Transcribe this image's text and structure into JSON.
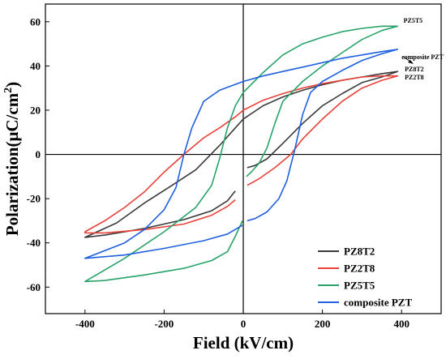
{
  "chart_data": {
    "type": "line",
    "xlabel": "Field (kV/cm)",
    "ylabel_main": "Polarization(μC/cm",
    "ylabel_sup": "2",
    "ylabel_close": ")",
    "xlim": [
      -500,
      500
    ],
    "ylim": [
      -72,
      68
    ],
    "x_ticks": [
      -400,
      -200,
      0,
      200,
      400
    ],
    "x_tick_labels": [
      "-400",
      "-200",
      "0",
      "200",
      "400"
    ],
    "y_ticks": [
      -60,
      -40,
      -20,
      0,
      20,
      40,
      60
    ],
    "y_tick_labels": [
      "-60",
      "-40",
      "-20",
      "0",
      "20",
      "40",
      "60"
    ],
    "grid": false,
    "zero_lines": true,
    "legend_position": "bottom-right",
    "series": [
      {
        "name": "PZ8T2",
        "color": "#3a3a3a",
        "upper": [
          [
            -20,
            -16.5
          ],
          [
            -40,
            -21
          ],
          [
            -80,
            -25.5
          ],
          [
            -150,
            -29.5
          ],
          [
            -250,
            -33.5
          ],
          [
            -350,
            -36.5
          ],
          [
            -400,
            -37.5
          ]
        ],
        "lower": [
          [
            -400,
            -37.5
          ],
          [
            -320,
            -31
          ],
          [
            -250,
            -22
          ],
          [
            -180,
            -14
          ],
          [
            -120,
            -7
          ],
          [
            -60,
            4
          ],
          [
            -20,
            12
          ],
          [
            0,
            16
          ],
          [
            50,
            22
          ],
          [
            100,
            26
          ],
          [
            150,
            29
          ],
          [
            200,
            31.5
          ],
          [
            250,
            33.5
          ],
          [
            300,
            35
          ],
          [
            350,
            36.5
          ],
          [
            390,
            37.5
          ]
        ],
        "descend": [
          [
            390,
            37.5
          ],
          [
            350,
            35
          ],
          [
            300,
            32.5
          ],
          [
            250,
            27.5
          ],
          [
            200,
            22
          ],
          [
            150,
            14
          ],
          [
            100,
            5
          ],
          [
            60,
            -2
          ],
          [
            30,
            -5
          ],
          [
            10,
            -6
          ]
        ]
      },
      {
        "name": "PZ2T8",
        "color": "#e8423a",
        "upper": [
          [
            -20,
            -20.5
          ],
          [
            -40,
            -23.5
          ],
          [
            -80,
            -27.5
          ],
          [
            -150,
            -31.5
          ],
          [
            -250,
            -34
          ],
          [
            -350,
            -35.5
          ],
          [
            -400,
            -35.5
          ]
        ],
        "lower": [
          [
            -400,
            -35
          ],
          [
            -350,
            -30
          ],
          [
            -300,
            -24
          ],
          [
            -250,
            -17
          ],
          [
            -200,
            -8
          ],
          [
            -150,
            0
          ],
          [
            -100,
            7.5
          ],
          [
            -60,
            12
          ],
          [
            -20,
            17
          ],
          [
            0,
            20
          ],
          [
            50,
            24.5
          ],
          [
            100,
            27.5
          ],
          [
            150,
            30
          ],
          [
            200,
            32
          ],
          [
            250,
            33.5
          ],
          [
            300,
            35
          ],
          [
            350,
            35.5
          ],
          [
            390,
            35.5
          ]
        ],
        "descend": [
          [
            390,
            35.5
          ],
          [
            350,
            33.5
          ],
          [
            300,
            30
          ],
          [
            250,
            24
          ],
          [
            200,
            16
          ],
          [
            150,
            7
          ],
          [
            120,
            0
          ],
          [
            80,
            -6
          ],
          [
            40,
            -11
          ],
          [
            10,
            -14
          ]
        ]
      },
      {
        "name": "PZ5T5",
        "color": "#27a36a",
        "upper": [
          [
            -2,
            -30
          ],
          [
            -20,
            -37
          ],
          [
            -40,
            -44
          ],
          [
            -80,
            -48
          ],
          [
            -150,
            -51.5
          ],
          [
            -250,
            -54.5
          ],
          [
            -350,
            -57
          ],
          [
            -400,
            -57.5
          ]
        ],
        "lower": [
          [
            -400,
            -57.5
          ],
          [
            -300,
            -47
          ],
          [
            -200,
            -35
          ],
          [
            -120,
            -24
          ],
          [
            -80,
            -14
          ],
          [
            -60,
            -2
          ],
          [
            -40,
            12
          ],
          [
            -20,
            22
          ],
          [
            0,
            28
          ],
          [
            50,
            37
          ],
          [
            100,
            45
          ],
          [
            150,
            50
          ],
          [
            200,
            53
          ],
          [
            250,
            55.5
          ],
          [
            300,
            57
          ],
          [
            350,
            58
          ],
          [
            390,
            58
          ]
        ],
        "descend": [
          [
            390,
            58
          ],
          [
            350,
            56
          ],
          [
            300,
            52
          ],
          [
            250,
            46
          ],
          [
            200,
            40
          ],
          [
            150,
            33
          ],
          [
            100,
            24
          ],
          [
            80,
            14
          ],
          [
            60,
            3
          ],
          [
            40,
            -4
          ],
          [
            20,
            -8
          ],
          [
            8,
            -10
          ]
        ]
      },
      {
        "name": "composite PZT",
        "color": "#1f5fe0",
        "upper": [
          [
            -2,
            -32
          ],
          [
            -40,
            -36
          ],
          [
            -100,
            -39
          ],
          [
            -200,
            -42.5
          ],
          [
            -300,
            -45.5
          ],
          [
            -400,
            -47
          ]
        ],
        "lower": [
          [
            -400,
            -47
          ],
          [
            -300,
            -40
          ],
          [
            -250,
            -34
          ],
          [
            -200,
            -25
          ],
          [
            -170,
            -15
          ],
          [
            -150,
            0
          ],
          [
            -130,
            12
          ],
          [
            -100,
            24
          ],
          [
            -60,
            29
          ],
          [
            0,
            33
          ],
          [
            50,
            35.5
          ],
          [
            100,
            37.5
          ],
          [
            150,
            39.5
          ],
          [
            200,
            41.5
          ],
          [
            250,
            43.5
          ],
          [
            300,
            45
          ],
          [
            350,
            46.5
          ],
          [
            390,
            47.5
          ]
        ],
        "descend": [
          [
            390,
            47.5
          ],
          [
            350,
            45.5
          ],
          [
            300,
            42.5
          ],
          [
            250,
            38
          ],
          [
            200,
            33
          ],
          [
            170,
            28
          ],
          [
            150,
            18
          ],
          [
            130,
            2
          ],
          [
            110,
            -12
          ],
          [
            90,
            -20
          ],
          [
            60,
            -26
          ],
          [
            30,
            -29
          ],
          [
            10,
            -30
          ]
        ]
      }
    ],
    "annotations": [
      {
        "text": "PZ5T5",
        "x": 405,
        "y": 59.5
      },
      {
        "text": "composite PZT",
        "x": 400,
        "y": 43
      },
      {
        "text": "PZ8T2",
        "x": 408,
        "y": 37.5
      },
      {
        "text": "PZ2T8",
        "x": 408,
        "y": 34
      }
    ]
  }
}
